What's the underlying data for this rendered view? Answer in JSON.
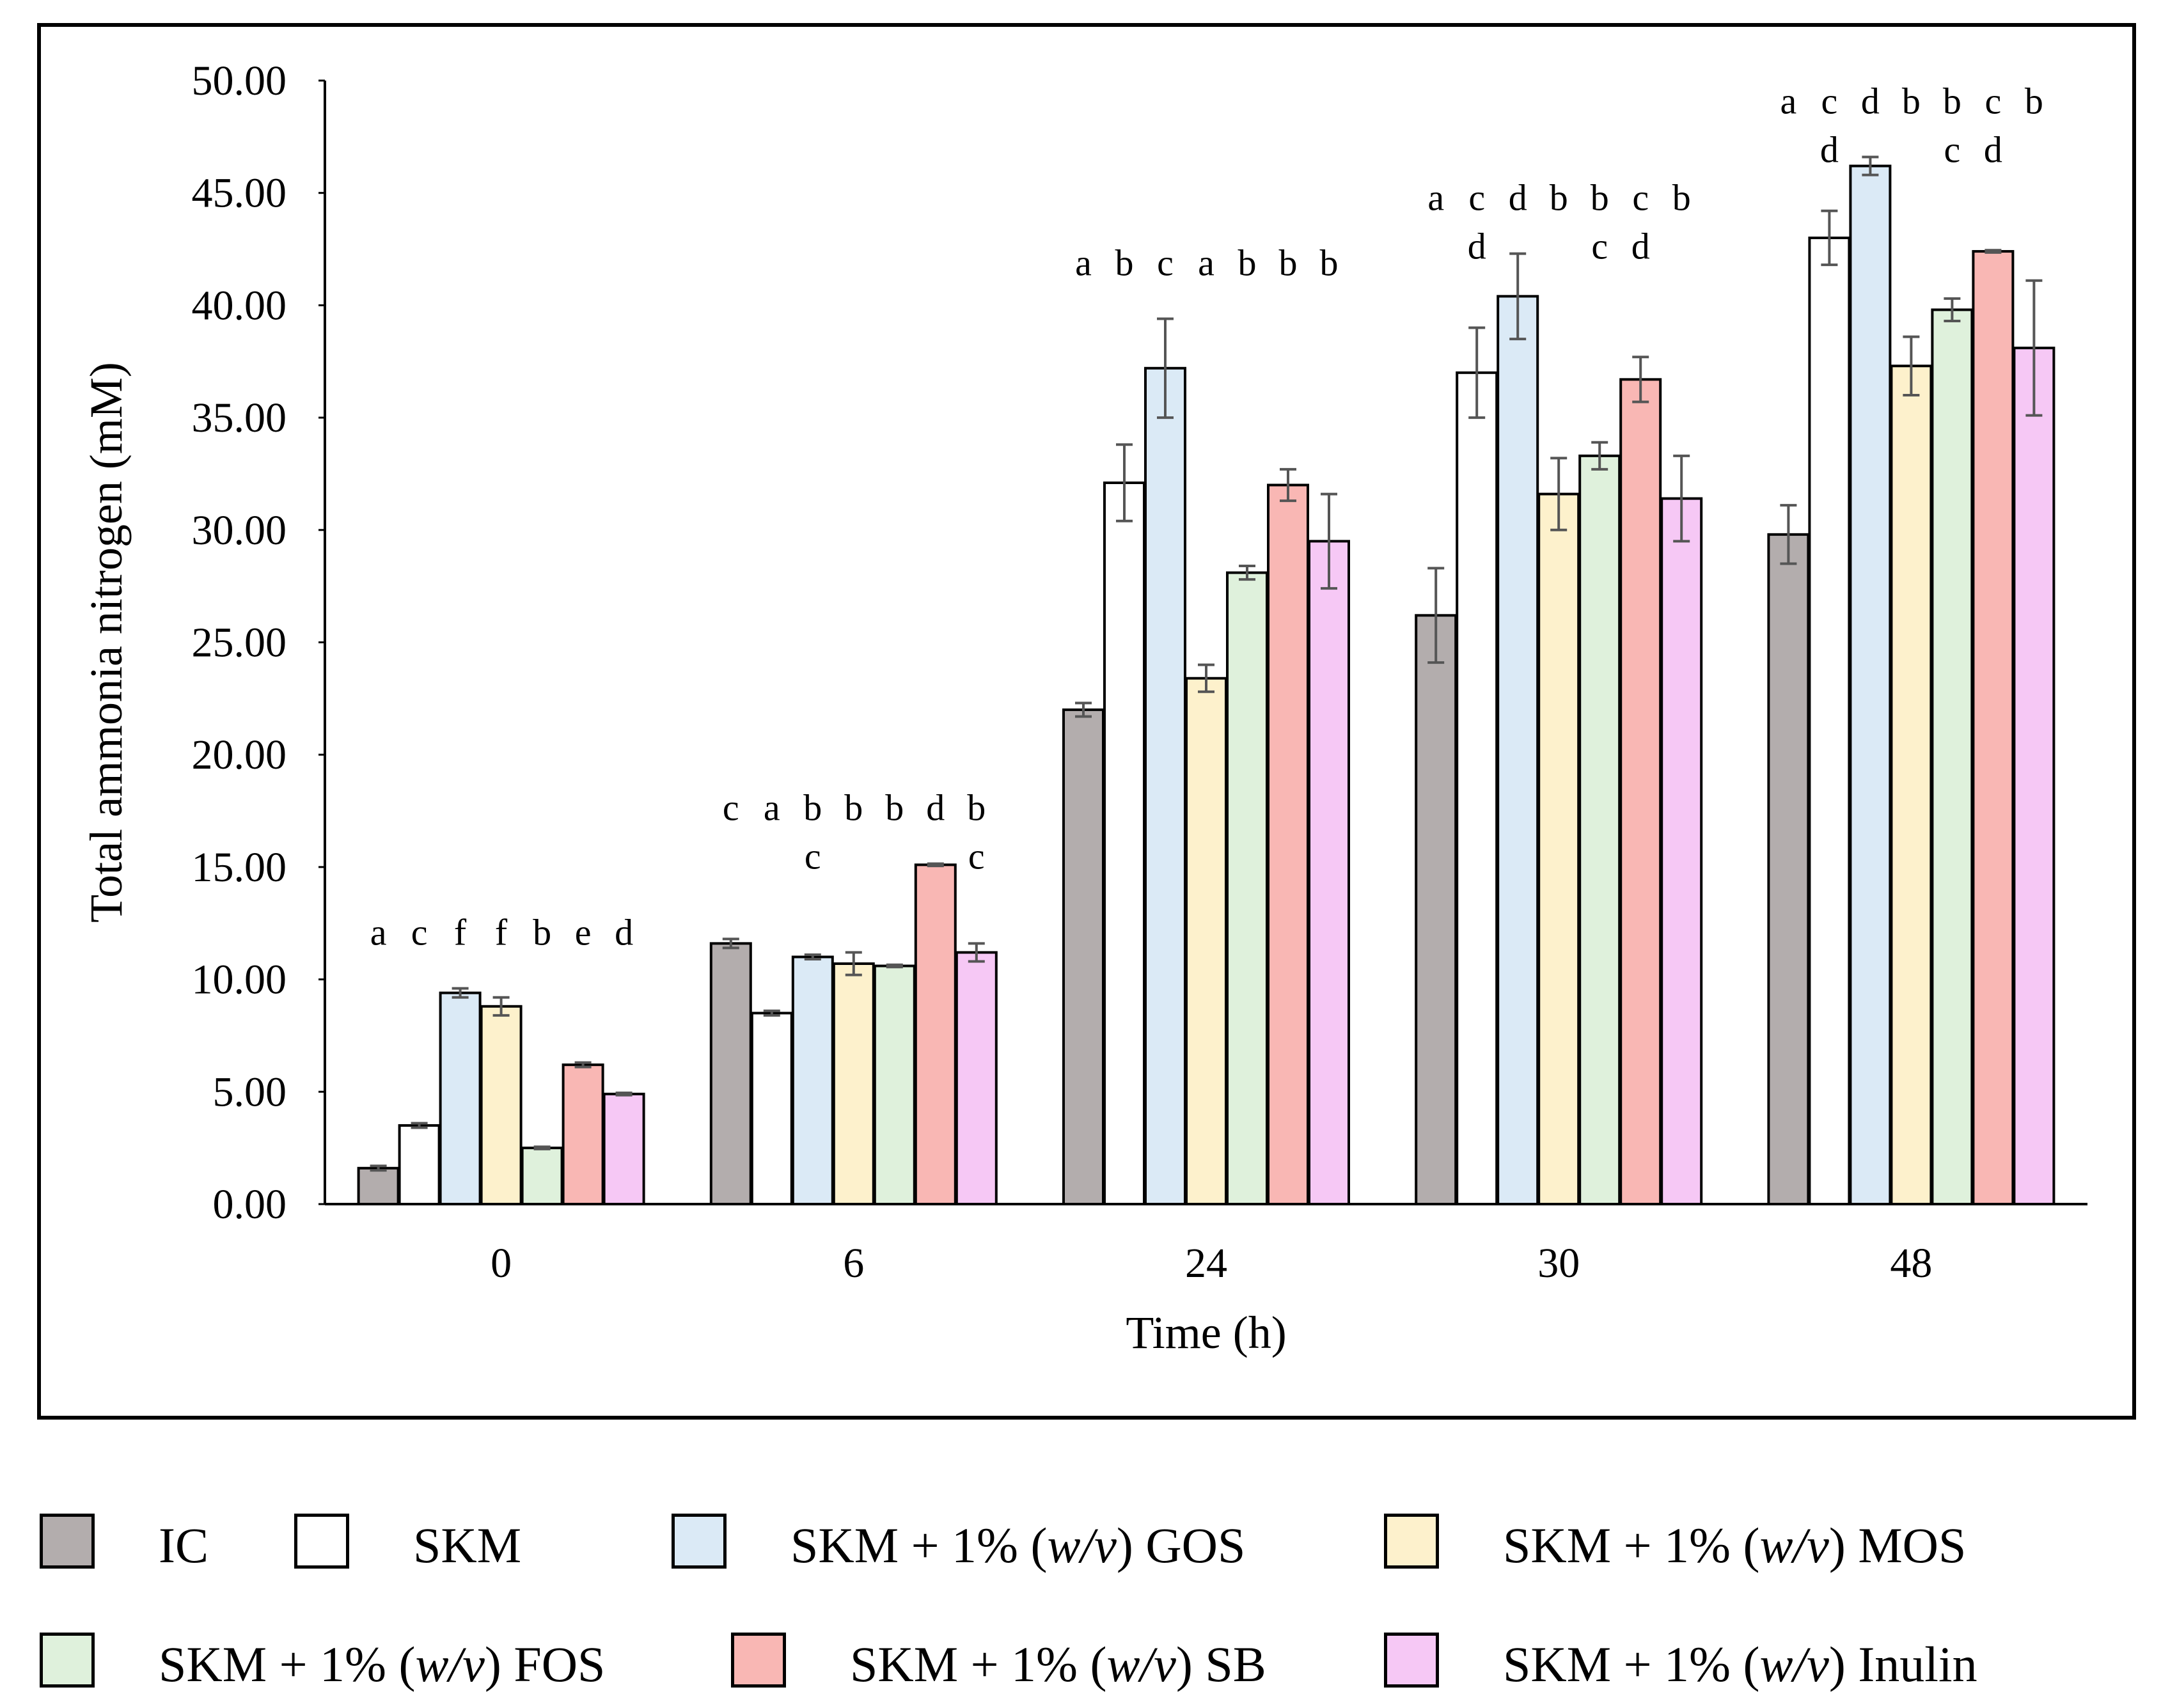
{
  "chart_data": {
    "type": "bar",
    "xlabel": "Time (h)",
    "ylabel": "Total ammonia nitrogen (mM)",
    "ylim": [
      0,
      50
    ],
    "yticks": [
      "0.00",
      "5.00",
      "10.00",
      "15.00",
      "20.00",
      "25.00",
      "30.00",
      "35.00",
      "40.00",
      "45.00",
      "50.00"
    ],
    "categories": [
      "0",
      "6",
      "24",
      "30",
      "48"
    ],
    "series": [
      {
        "name": "IC",
        "color": "#b3adad",
        "values": [
          1.6,
          11.6,
          22.0,
          26.2,
          29.8
        ],
        "errors": [
          0.1,
          0.2,
          0.3,
          2.1,
          1.3
        ],
        "letters": [
          [
            "a"
          ],
          [
            "c"
          ],
          [
            "a"
          ],
          [
            "a"
          ],
          [
            "a"
          ]
        ]
      },
      {
        "name": "SKM",
        "color": "#ffffff",
        "values": [
          3.5,
          8.5,
          32.1,
          37.0,
          43.0
        ],
        "errors": [
          0.1,
          0.1,
          1.7,
          2.0,
          1.2
        ],
        "letters": [
          [
            "c"
          ],
          [
            "a"
          ],
          [
            "b"
          ],
          [
            "c",
            "d"
          ],
          [
            "c",
            "d"
          ]
        ]
      },
      {
        "name": "SKM + 1% (w/v) GOS",
        "color": "#dbeaf6",
        "values": [
          9.4,
          11.0,
          37.2,
          40.4,
          46.2
        ],
        "errors": [
          0.2,
          0.1,
          2.2,
          1.9,
          0.4
        ],
        "letters": [
          [
            "f"
          ],
          [
            "b",
            "c"
          ],
          [
            "c"
          ],
          [
            "d"
          ],
          [
            "d"
          ]
        ]
      },
      {
        "name": "SKM + 1% (w/v) MOS",
        "color": "#fdf1cc",
        "values": [
          8.8,
          10.7,
          23.4,
          31.6,
          37.3
        ],
        "errors": [
          0.4,
          0.5,
          0.6,
          1.6,
          1.3
        ],
        "letters": [
          [
            "f"
          ],
          [
            "b"
          ],
          [
            "a"
          ],
          [
            "b"
          ],
          [
            "b"
          ]
        ]
      },
      {
        "name": "SKM + 1% (w/v) FOS",
        "color": "#dff1dc",
        "values": [
          2.5,
          10.6,
          28.1,
          33.3,
          39.8
        ],
        "errors": [
          0.05,
          0.05,
          0.3,
          0.6,
          0.5
        ],
        "letters": [
          [
            "b"
          ],
          [
            "b"
          ],
          [
            "b"
          ],
          [
            "b",
            "c"
          ],
          [
            "b",
            "c"
          ]
        ]
      },
      {
        "name": "SKM + 1% (w/v) SB",
        "color": "#f9b7b4",
        "values": [
          6.2,
          15.1,
          32.0,
          36.7,
          42.4
        ],
        "errors": [
          0.1,
          0.05,
          0.7,
          1.0,
          0.05
        ],
        "letters": [
          [
            "e"
          ],
          [
            "d"
          ],
          [
            "b"
          ],
          [
            "c",
            "d"
          ],
          [
            "c",
            "d"
          ]
        ]
      },
      {
        "name": "SKM + 1% (w/v) Inulin",
        "color": "#f6c8f5",
        "values": [
          4.9,
          11.2,
          29.5,
          31.4,
          38.1
        ],
        "errors": [
          0.05,
          0.4,
          2.1,
          1.9,
          3.0
        ],
        "letters": [
          [
            "d"
          ],
          [
            "b",
            "c"
          ],
          [
            "b"
          ],
          [
            "b"
          ],
          [
            "b"
          ]
        ]
      }
    ]
  },
  "legend": {
    "items": [
      {
        "pre": "IC",
        "em": "",
        "post": ""
      },
      {
        "pre": "SKM",
        "em": "",
        "post": ""
      },
      {
        "pre": "SKM + 1% (",
        "em": "w/v",
        "post": ") GOS"
      },
      {
        "pre": "SKM + 1% (",
        "em": "w/v",
        "post": ") MOS"
      },
      {
        "pre": "SKM + 1% (",
        "em": "w/v",
        "post": ") FOS"
      },
      {
        "pre": "SKM + 1% (",
        "em": "w/v",
        "post": ") SB"
      },
      {
        "pre": "SKM + 1% (",
        "em": "w/v",
        "post": ") Inulin"
      }
    ]
  }
}
